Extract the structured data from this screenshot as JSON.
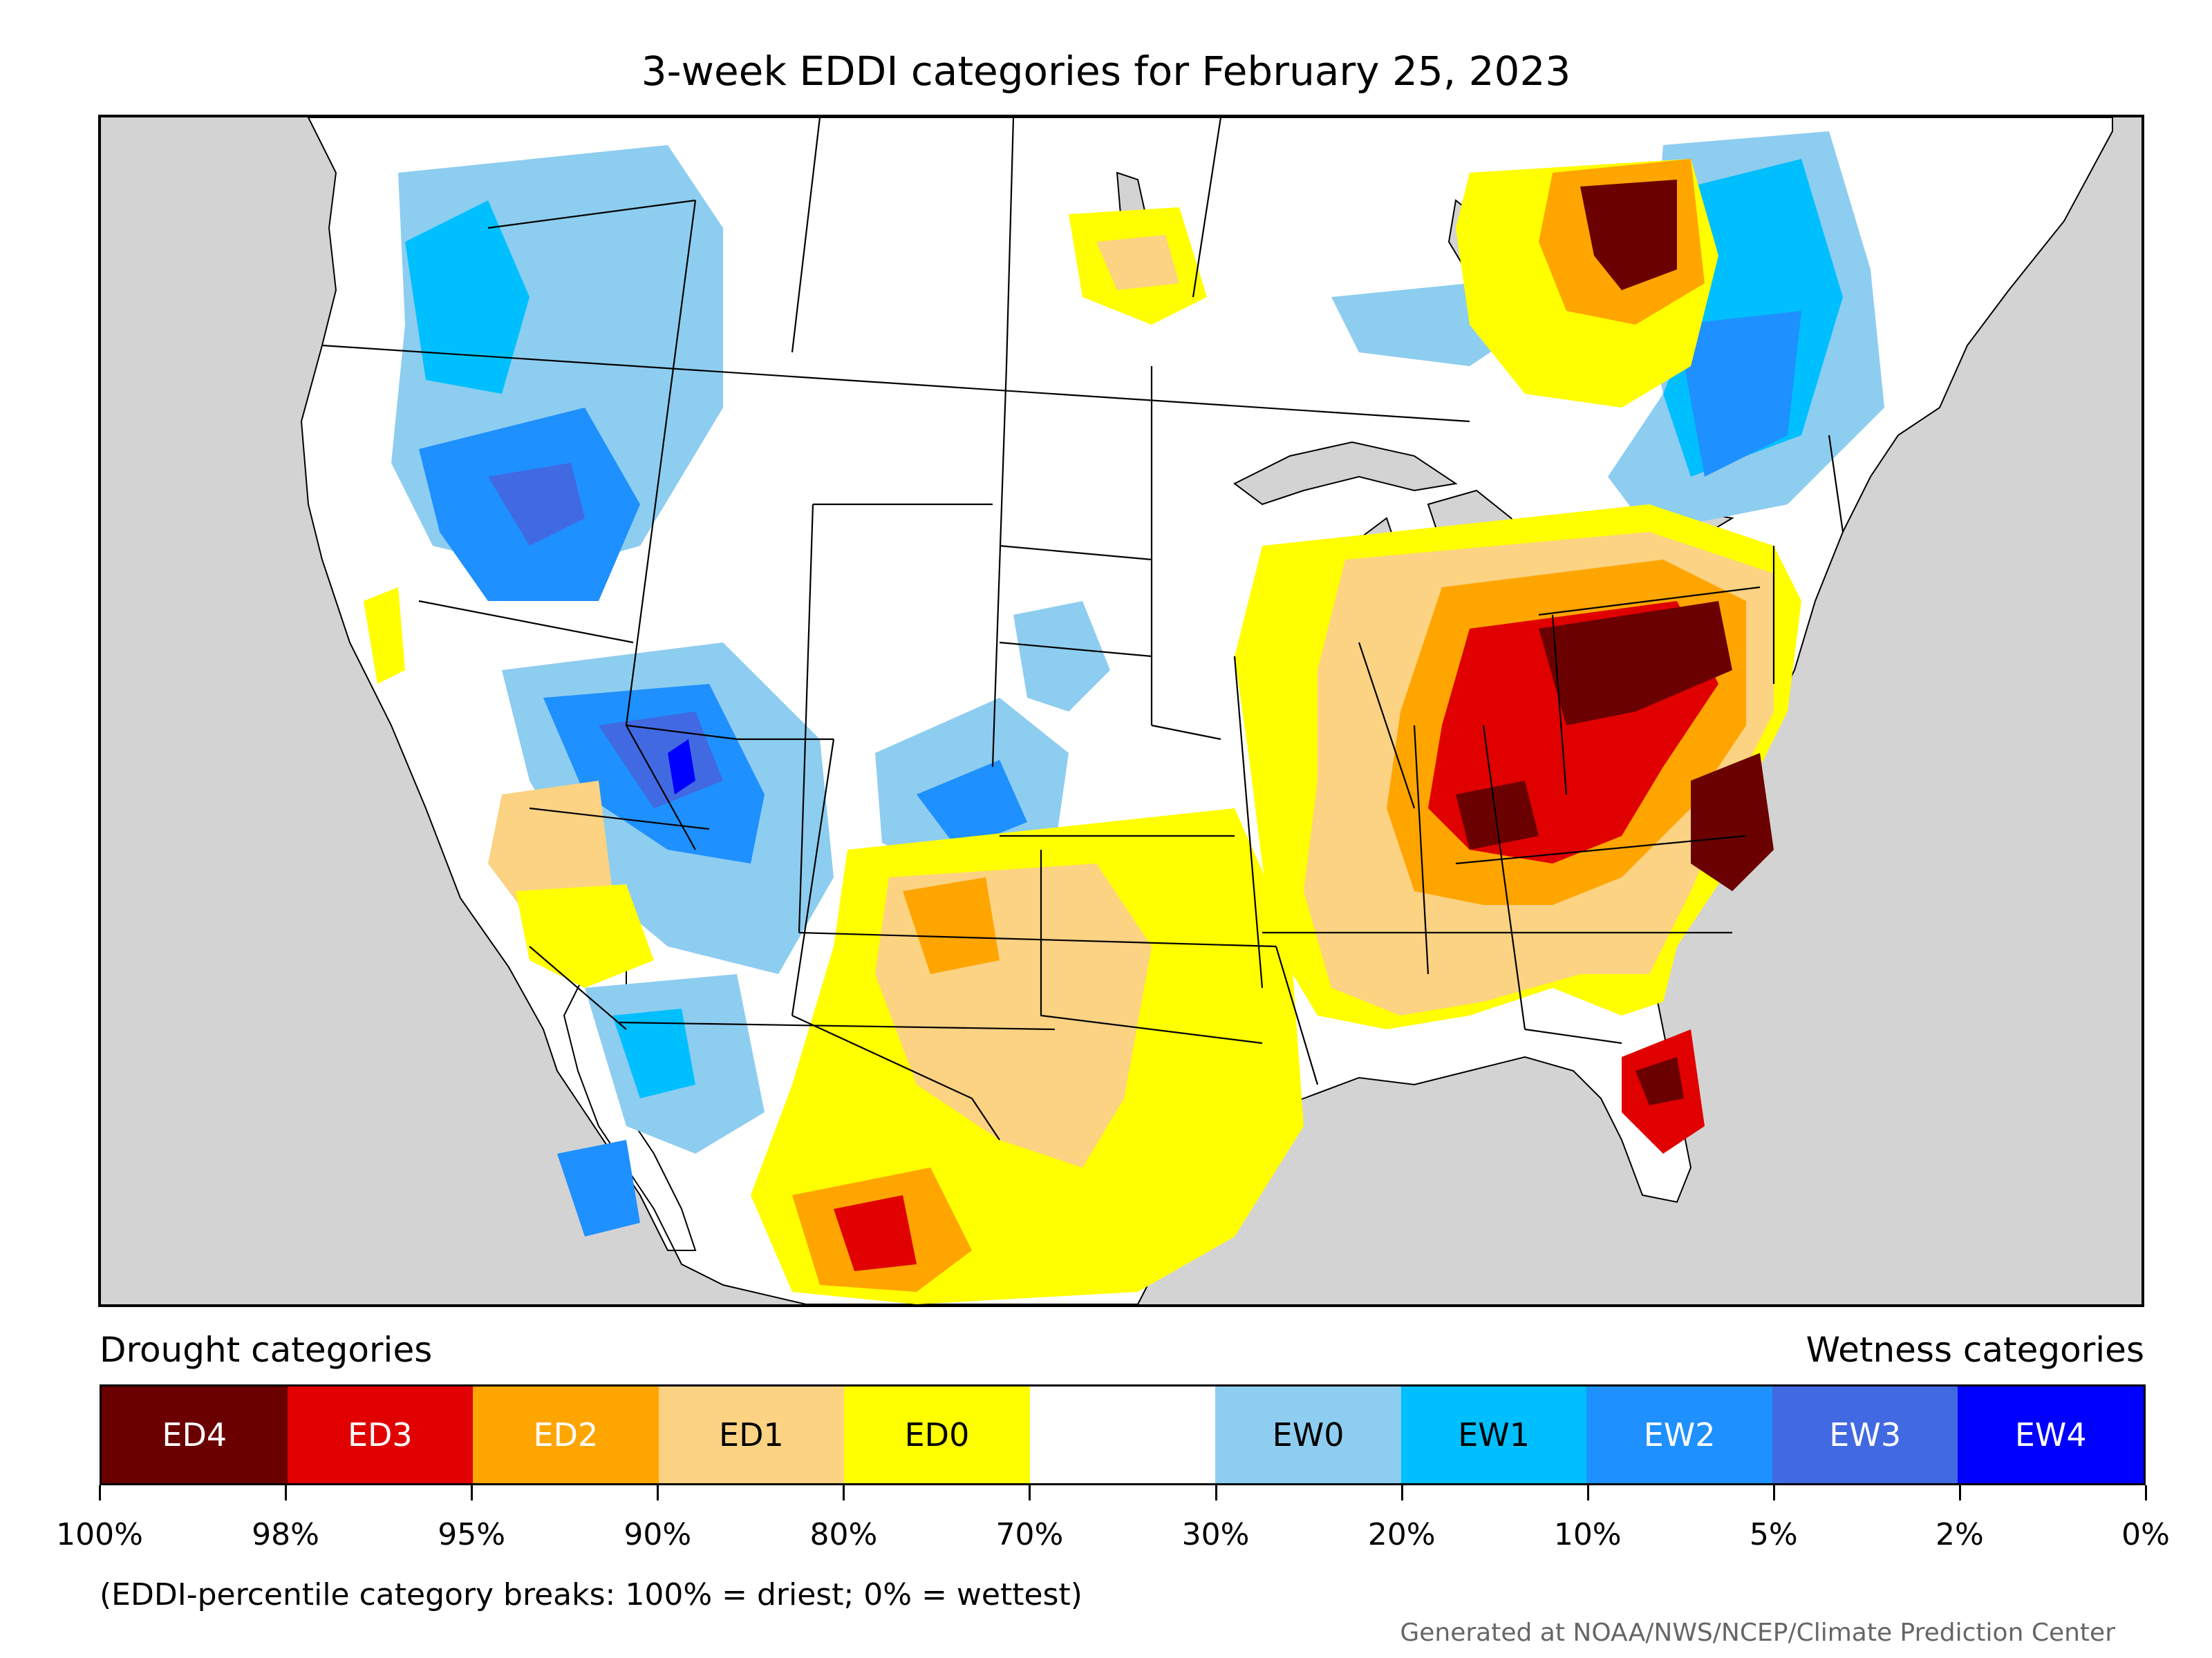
{
  "title": "3-week EDDI categories for February 25, 2023",
  "legend": {
    "drought_label": "Drought categories",
    "wetness_label": "Wetness categories",
    "categories": [
      {
        "label": "ED4",
        "color": "#6b0000",
        "text_color": "#ffffff"
      },
      {
        "label": "ED3",
        "color": "#e00000",
        "text_color": "#ffffff"
      },
      {
        "label": "ED2",
        "color": "#ffa500",
        "text_color": "#ffffff"
      },
      {
        "label": "ED1",
        "color": "#fcd283",
        "text_color": "#000000"
      },
      {
        "label": "ED0",
        "color": "#ffff00",
        "text_color": "#000000"
      },
      {
        "label": "",
        "color": "#ffffff",
        "text_color": "#000000"
      },
      {
        "label": "EW0",
        "color": "#8dcdef",
        "text_color": "#000000"
      },
      {
        "label": "EW1",
        "color": "#00bfff",
        "text_color": "#000000"
      },
      {
        "label": "EW2",
        "color": "#1e90ff",
        "text_color": "#ffffff"
      },
      {
        "label": "EW3",
        "color": "#4169e1",
        "text_color": "#ffffff"
      },
      {
        "label": "EW4",
        "color": "#0000ff",
        "text_color": "#ffffff"
      }
    ],
    "breaks": [
      "100%",
      "98%",
      "95%",
      "90%",
      "80%",
      "70%",
      "30%",
      "20%",
      "10%",
      "5%",
      "2%",
      "0%"
    ]
  },
  "note": "(EDDI-percentile category breaks: 100% = driest; 0% = wettest)",
  "credit": "Generated at NOAA/NWS/NCEP/Climate Prediction Center",
  "map": {
    "land_color": "#ffffff",
    "water_color": "#d3d3d3"
  }
}
